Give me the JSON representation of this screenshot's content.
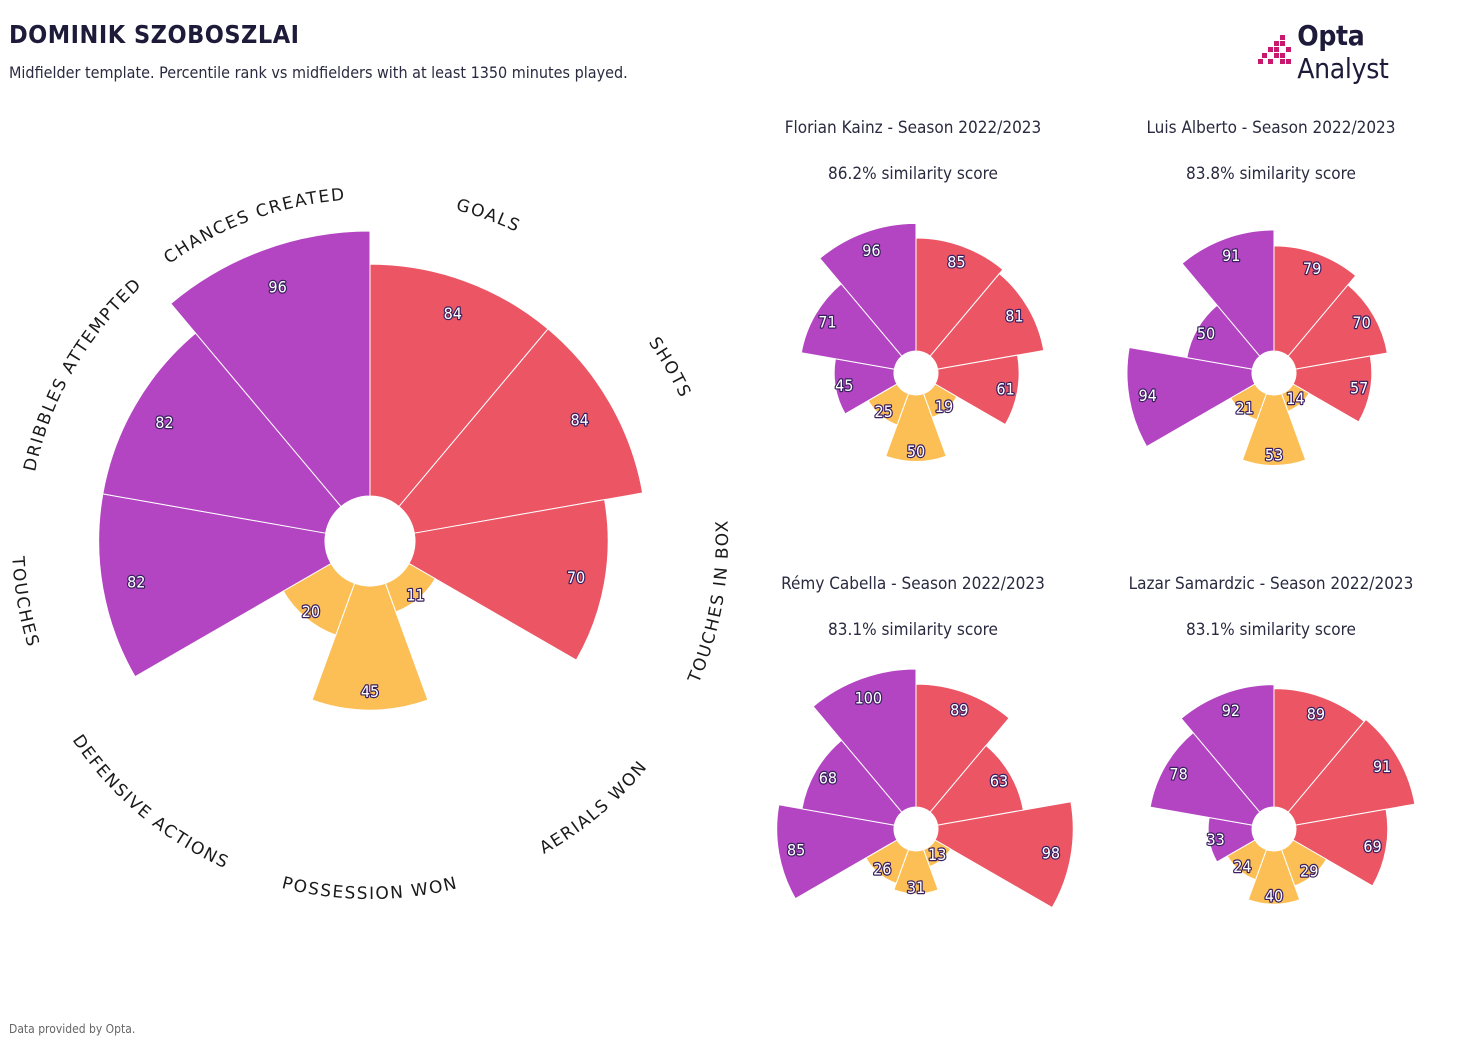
{
  "header": {
    "title": "DOMINIK SZOBOSZLAI",
    "subtitle": "Midfielder template. Percentile rank vs midfielders with at least 1350 minutes played."
  },
  "logo": {
    "brand_bold": "Opta",
    "brand_light": "Analyst"
  },
  "footer": {
    "note": "Data provided by Opta."
  },
  "colors": {
    "attack": "#eb5564",
    "possession": "#b344c2",
    "defence": "#fbbf55"
  },
  "chart_data": [
    {
      "type": "polar-bar",
      "player": "DOMINIK SZOBOSZLAI",
      "categories": [
        "GOALS",
        "SHOTS",
        "TOUCHES IN BOX",
        "AERIALS WON",
        "POSSESSION WON",
        "DEFENSIVE ACTIONS",
        "TOUCHES",
        "DRIBBLES ATTEMPTED",
        "CHANCES CREATED"
      ],
      "groups": [
        "attack",
        "attack",
        "attack",
        "defence",
        "defence",
        "defence",
        "possession",
        "possession",
        "possession"
      ],
      "values": [
        84,
        84,
        70,
        11,
        45,
        20,
        82,
        82,
        96
      ],
      "rlim": [
        0,
        100
      ]
    },
    {
      "type": "polar-bar",
      "title": "Florian Kainz - Season 2022/2023",
      "subtitle": "86.2% similarity score",
      "values": [
        85,
        81,
        61,
        19,
        50,
        25,
        45,
        71,
        96
      ]
    },
    {
      "type": "polar-bar",
      "title": "Luis Alberto - Season 2022/2023",
      "subtitle": "83.8% similarity score",
      "values": [
        79,
        70,
        57,
        14,
        53,
        21,
        94,
        50,
        91
      ]
    },
    {
      "type": "polar-bar",
      "title": "Rémy Cabella - Season 2022/2023",
      "subtitle": "83.1% similarity score",
      "values": [
        89,
        63,
        98,
        13,
        31,
        26,
        85,
        68,
        100
      ]
    },
    {
      "type": "polar-bar",
      "title": "Lazar Samardzic - Season 2022/2023",
      "subtitle": "83.1% similarity score",
      "values": [
        89,
        91,
        69,
        29,
        40,
        24,
        33,
        78,
        92
      ]
    }
  ]
}
